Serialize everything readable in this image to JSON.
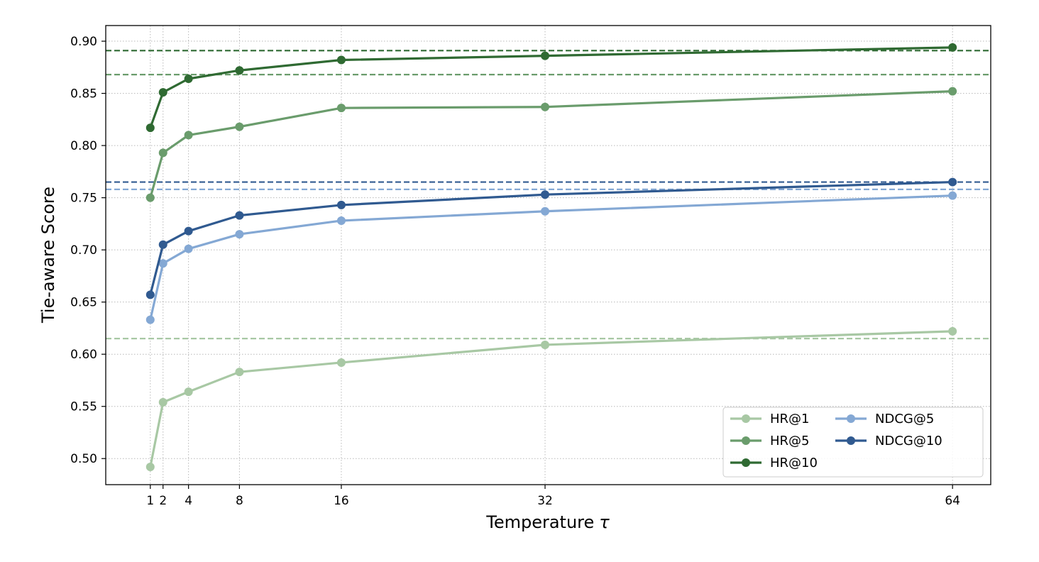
{
  "chart_data": {
    "type": "line",
    "title": "",
    "xlabel": "Temperature",
    "xlabel_symbol": "τ",
    "ylabel": "Tie-aware Score",
    "x": [
      1,
      2,
      4,
      8,
      16,
      32,
      64
    ],
    "x_tick_labels": [
      "1",
      "2",
      "4",
      "8",
      "16",
      "32",
      "64"
    ],
    "xlim": [
      -2.5,
      67
    ],
    "ylim": [
      0.475,
      0.915
    ],
    "y_ticks": [
      0.5,
      0.55,
      0.6,
      0.65,
      0.7,
      0.75,
      0.8,
      0.85,
      0.9
    ],
    "y_tick_labels": [
      "0.50",
      "0.55",
      "0.60",
      "0.65",
      "0.70",
      "0.75",
      "0.80",
      "0.85",
      "0.90"
    ],
    "grid": true,
    "legend": {
      "placement": "bottom-right",
      "columns": 2
    },
    "series": [
      {
        "name": "HR@1",
        "color": "#a8c8a4",
        "values": [
          0.492,
          0.554,
          0.564,
          0.583,
          0.592,
          0.609,
          0.622
        ],
        "baseline": 0.615
      },
      {
        "name": "HR@5",
        "color": "#6a9c6c",
        "values": [
          0.75,
          0.793,
          0.81,
          0.818,
          0.836,
          0.837,
          0.852
        ],
        "baseline": 0.868
      },
      {
        "name": "HR@10",
        "color": "#2f6a32",
        "values": [
          0.817,
          0.851,
          0.864,
          0.872,
          0.882,
          0.886,
          0.894
        ],
        "baseline": 0.891
      },
      {
        "name": "NDCG@5",
        "color": "#84a8d4",
        "values": [
          0.633,
          0.687,
          0.701,
          0.715,
          0.728,
          0.737,
          0.752
        ],
        "baseline": 0.758
      },
      {
        "name": "NDCG@10",
        "color": "#305a90",
        "values": [
          0.657,
          0.705,
          0.718,
          0.733,
          0.743,
          0.753,
          0.765
        ],
        "baseline": 0.765
      }
    ]
  }
}
